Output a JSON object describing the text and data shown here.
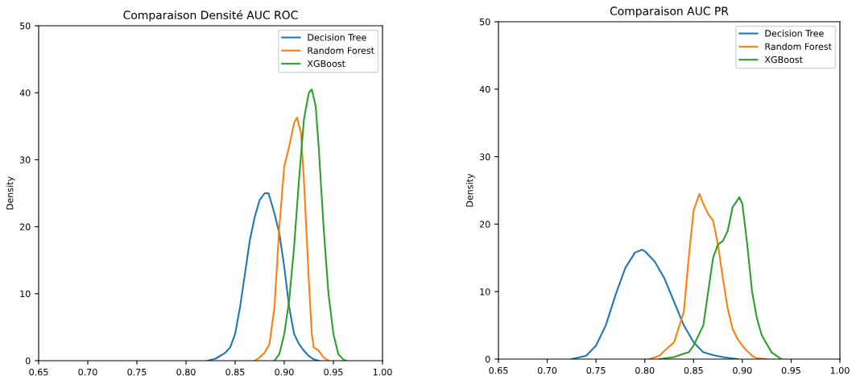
{
  "chart_data": [
    {
      "type": "line",
      "title": "Comparaison Densité AUC ROC",
      "ylabel": "Density",
      "xlim": [
        0.65,
        1.0
      ],
      "ylim": [
        0,
        50
      ],
      "xticks": [
        {
          "value": 0.65,
          "label": "0.65"
        },
        {
          "value": 0.7,
          "label": "0.70"
        },
        {
          "value": 0.75,
          "label": "0.75"
        },
        {
          "value": 0.8,
          "label": "0.80"
        },
        {
          "value": 0.85,
          "label": "0.85"
        },
        {
          "value": 0.9,
          "label": "0.90"
        },
        {
          "value": 0.95,
          "label": "0.95"
        },
        {
          "value": 1.0,
          "label": "1.00"
        }
      ],
      "yticks": [
        0,
        10,
        20,
        30,
        40,
        50
      ],
      "legend": "top right",
      "grid": false,
      "series": [
        {
          "name": "Decision Tree",
          "color": "#1f77b4",
          "x": [
            0.822,
            0.83,
            0.84,
            0.845,
            0.85,
            0.855,
            0.86,
            0.865,
            0.87,
            0.875,
            0.88,
            0.884,
            0.89,
            0.895,
            0.9,
            0.905,
            0.91,
            0.915,
            0.92,
            0.925,
            0.93,
            0.935
          ],
          "values": [
            0,
            0.3,
            1.2,
            2,
            4,
            8,
            13,
            18,
            21.5,
            24,
            25,
            25,
            22,
            19,
            14,
            8,
            4,
            2.5,
            1.5,
            0.7,
            0.2,
            0
          ]
        },
        {
          "name": "Random Forest",
          "color": "#ff7f0e",
          "x": [
            0.87,
            0.875,
            0.88,
            0.885,
            0.89,
            0.895,
            0.9,
            0.905,
            0.91,
            0.913,
            0.917,
            0.92,
            0.925,
            0.928,
            0.93,
            0.935,
            0.94,
            0.945
          ],
          "values": [
            0,
            0.5,
            1.2,
            2.5,
            8,
            20,
            29,
            32,
            35.5,
            36.3,
            34,
            27,
            12,
            4,
            2,
            1.5,
            0.5,
            0
          ]
        },
        {
          "name": "XGBoost",
          "color": "#2ca02c",
          "x": [
            0.89,
            0.895,
            0.9,
            0.905,
            0.91,
            0.915,
            0.92,
            0.925,
            0.928,
            0.932,
            0.935,
            0.94,
            0.945,
            0.95,
            0.955,
            0.96,
            0.963
          ],
          "values": [
            0,
            1,
            4,
            9,
            17,
            27,
            36,
            40,
            40.5,
            38,
            32,
            20,
            10,
            4,
            1,
            0.2,
            0
          ]
        }
      ]
    },
    {
      "type": "line",
      "title": "Comparaison AUC PR",
      "ylabel": "Density",
      "xlim": [
        0.65,
        1.0
      ],
      "ylim": [
        0,
        50
      ],
      "xticks": [
        {
          "value": 0.65,
          "label": "0.65"
        },
        {
          "value": 0.7,
          "label": "0.70"
        },
        {
          "value": 0.75,
          "label": "0.75"
        },
        {
          "value": 0.8,
          "label": "0.80"
        },
        {
          "value": 0.85,
          "label": "0.85"
        },
        {
          "value": 0.9,
          "label": "0.90"
        },
        {
          "value": 0.95,
          "label": "0.95"
        },
        {
          "value": 1.0,
          "label": "1.00"
        }
      ],
      "yticks": [
        0,
        10,
        20,
        30,
        40,
        50
      ],
      "legend": "top right",
      "grid": false,
      "series": [
        {
          "name": "Decision Tree",
          "color": "#1f77b4",
          "x": [
            0.725,
            0.74,
            0.75,
            0.76,
            0.77,
            0.78,
            0.79,
            0.797,
            0.8,
            0.81,
            0.82,
            0.83,
            0.84,
            0.85,
            0.86,
            0.87,
            0.88,
            0.89,
            0.895
          ],
          "values": [
            0,
            0.5,
            2,
            5,
            9.5,
            13.5,
            15.8,
            16.2,
            16,
            14.5,
            12,
            8.5,
            5,
            2.5,
            1,
            0.6,
            0.3,
            0.1,
            0
          ]
        },
        {
          "name": "Random Forest",
          "color": "#ff7f0e",
          "x": [
            0.805,
            0.815,
            0.82,
            0.83,
            0.84,
            0.845,
            0.85,
            0.856,
            0.86,
            0.865,
            0.87,
            0.875,
            0.88,
            0.885,
            0.89,
            0.895,
            0.9,
            0.905,
            0.91,
            0.915,
            0.925
          ],
          "values": [
            0,
            0.5,
            1.2,
            2.5,
            7,
            15,
            22,
            24.5,
            23,
            21.5,
            20.5,
            17,
            12,
            7.5,
            4.5,
            3,
            2,
            1.2,
            0.5,
            0.1,
            0
          ]
        },
        {
          "name": "XGBoost",
          "color": "#2ca02c",
          "x": [
            0.815,
            0.83,
            0.84,
            0.845,
            0.85,
            0.86,
            0.865,
            0.87,
            0.875,
            0.88,
            0.885,
            0.89,
            0.897,
            0.9,
            0.905,
            0.91,
            0.915,
            0.92,
            0.93,
            0.94
          ],
          "values": [
            0,
            0.3,
            0.8,
            1,
            2,
            5,
            10,
            15,
            17,
            17.5,
            19,
            22.5,
            24,
            23,
            17,
            10,
            6,
            3.5,
            1,
            0
          ]
        }
      ]
    }
  ]
}
